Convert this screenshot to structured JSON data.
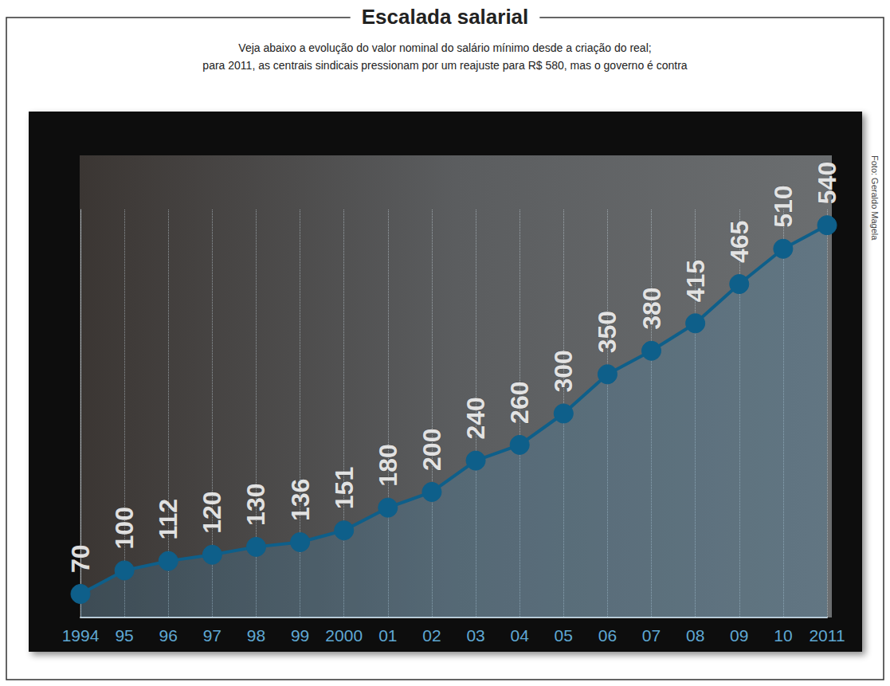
{
  "chart_data": {
    "type": "line",
    "title": "Escalada salarial",
    "subtitle": "Veja abaixo a evolução do valor nominal do salário mínimo desde a criação do real; para 2011, as centrais sindicais pressionam por um reajuste para R$ 580, mas o governo é contra",
    "annotations": [
      "Foto: Geraldo Magela"
    ],
    "categories": [
      "1994",
      "95",
      "96",
      "97",
      "98",
      "99",
      "2000",
      "01",
      "02",
      "03",
      "04",
      "05",
      "06",
      "07",
      "08",
      "09",
      "10",
      "2011"
    ],
    "values": [
      70,
      100,
      112,
      120,
      130,
      136,
      151,
      180,
      200,
      240,
      260,
      300,
      350,
      380,
      415,
      465,
      510,
      540
    ],
    "color": "#0e5f8a",
    "marker": "circle",
    "ylim": [
      40,
      560
    ],
    "grid": true,
    "data_labels": true,
    "tick_labels": "x"
  }
}
